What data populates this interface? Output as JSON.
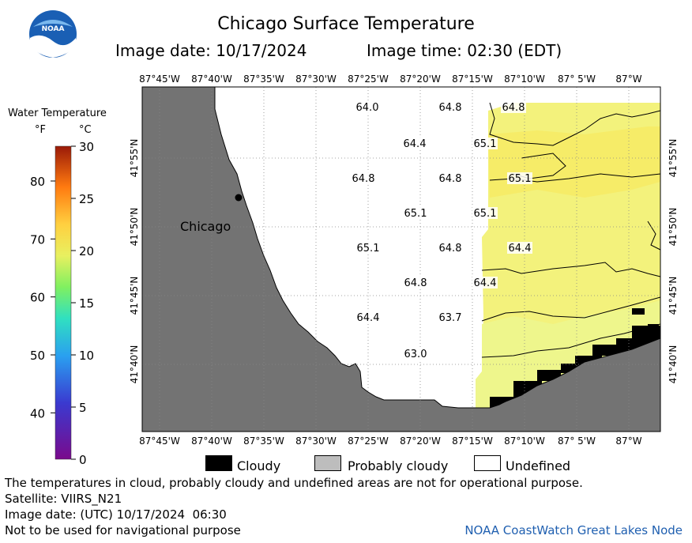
{
  "header": {
    "title": "Chicago Surface Temperature",
    "image_date": "Image date: 10/17/2024",
    "image_time": "Image time: 02:30 (EDT)"
  },
  "colorbar": {
    "title": "Water Temperature",
    "unit_f": "°F",
    "unit_c": "°C",
    "f_ticks": [
      "80",
      "70",
      "60",
      "50",
      "40"
    ],
    "c_ticks": [
      "30",
      "25",
      "20",
      "15",
      "10",
      "5",
      "0"
    ],
    "c_range": [
      0,
      30
    ]
  },
  "map": {
    "lon_labels": [
      "87°45'W",
      "87°40'W",
      "87°35'W",
      "87°30'W",
      "87°25'W",
      "87°20'W",
      "87°15'W",
      "87°10'W",
      "87° 5'W",
      "87°W"
    ],
    "lat_labels": [
      "41°55'N",
      "41°50'N",
      "41°45'N",
      "41°40'N"
    ],
    "city_label": "Chicago",
    "temperature_labels": [
      "64.0",
      "64.8",
      "64.8",
      "64.4",
      "65.1",
      "64.8",
      "64.8",
      "65.1",
      "65.1",
      "65.1",
      "65.1",
      "64.8",
      "64.4",
      "64.8",
      "64.4",
      "64.4",
      "63.7",
      "63.0"
    ],
    "colors": {
      "land": "#737373",
      "undefined": "#ffffff",
      "cloud": "#000000",
      "water_warm": "#f6f27a",
      "water_cool": "#eef58a"
    }
  },
  "legend": {
    "cloudy": "Cloudy",
    "probably_cloudy": "Probably cloudy",
    "undefined": "Undefined"
  },
  "footer": {
    "disclaimer": "The temperatures in cloud, probably cloudy and undefined areas are not for operational purpose.",
    "satellite": "Satellite: VIIRS_N21",
    "utc_date": "Image date: (UTC) 10/17/2024  06:30",
    "navigation": "Not to be used for navigational purpose",
    "credit": "NOAA CoastWatch Great Lakes Node"
  }
}
